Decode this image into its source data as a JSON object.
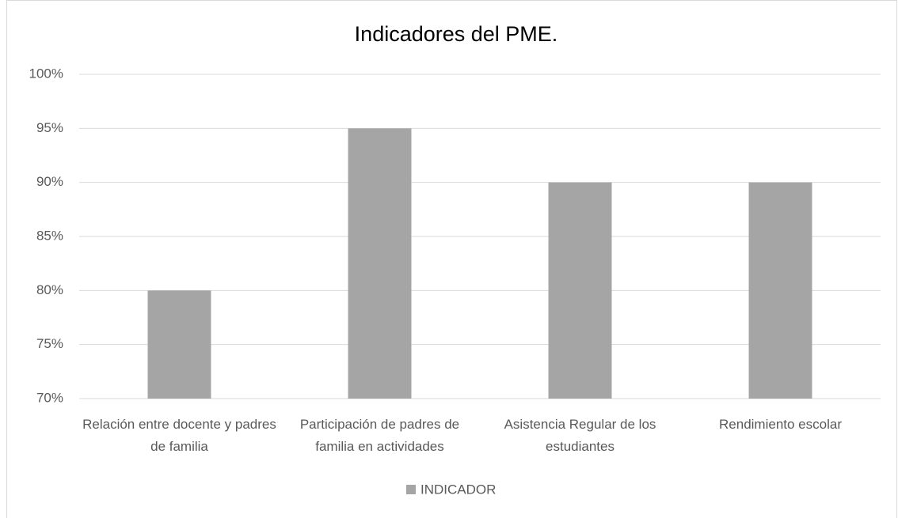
{
  "chart_data": {
    "type": "bar",
    "title": "Indicadores del PME.",
    "categories": [
      "Relación entre docente y padres de familia",
      "Participación de padres de familia en actividades",
      "Asistencia Regular de los estudiantes",
      "Rendimiento escolar"
    ],
    "series": [
      {
        "name": "INDICADOR",
        "color": "#a5a5a5",
        "values": [
          80,
          95,
          90,
          90
        ]
      }
    ],
    "ylim": [
      70,
      100
    ],
    "yticks": [
      {
        "value": 70,
        "label": "70%"
      },
      {
        "value": 75,
        "label": "75%"
      },
      {
        "value": 80,
        "label": "80%"
      },
      {
        "value": 85,
        "label": "85%"
      },
      {
        "value": 90,
        "label": "90%"
      },
      {
        "value": 95,
        "label": "95%"
      },
      {
        "value": 100,
        "label": "100%"
      }
    ],
    "grid": true,
    "legend": "bottom"
  }
}
